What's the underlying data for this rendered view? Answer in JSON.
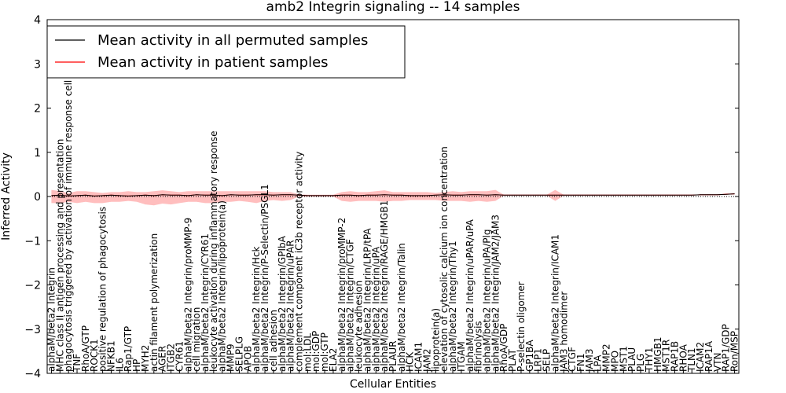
{
  "chart_data": {
    "type": "line",
    "title": "amb2 Integrin signaling -- 14 samples",
    "xlabel": "Cellular Entities",
    "ylabel": "Inferred Activity",
    "ylim": [
      -4,
      4
    ],
    "yticks": [
      -4,
      -3,
      -2,
      -1,
      0,
      1,
      2,
      3,
      4
    ],
    "grid": false,
    "legend_position": "top-left",
    "categories": [
      "alphaM/beta2 Integrin",
      "MHC class II antigen processing and presentation",
      "phagocytosis triggered by activation of immune response cell surface",
      "TNF",
      "RhoA/GTP",
      "ROCK1",
      "positive regulation of phagocytosis",
      "NFKB1",
      "IL6",
      "Rap1/GTP",
      "HP",
      "MYH2",
      "actin filament polymerization",
      "AGER",
      "ITGB2",
      "CYR61",
      "alphaM/beta2 Integrin/proMMP-9",
      "cell migration",
      "alphaM/beta2 Integrin/CYR61",
      "leukocyte activation during inflammatory response",
      "alphaM/beta2 Integrin/lipoprotein(a)",
      "MMP9",
      "SELPLG",
      "APOB",
      "alphaM/beta2 Integrin/Hck",
      "alphaM/beta2 Integrin/P-Selectin/PSGL1",
      "cell adhesion",
      "alphaM/beta2 Integrin/GPIbA",
      "alphaM/beta2 Integrin/uPAR",
      "complement component iC3b receptor activity",
      "mol:LDL",
      "mol:GDP",
      "mol:GTP",
      "ELA2",
      "alphaM/beta2 Integrin/proMMP-2",
      "alphaM/beta2 Integrin/CTGF",
      "leukocyte adhesion",
      "alphaM/beta2 Integrin/LRP/tPA",
      "alphaM/beta2 Integrin/uPA",
      "alphaM/beta2 Integrin/RAGE/HMGB1",
      "PLAUR",
      "alphaM/beta2 Integrin/Talin",
      "HCK",
      "ICAM1",
      "JAM2",
      "lipoprotein(a)",
      "elevation of cytosolic calcium ion concentration",
      "alphaM/beta2 Integrin/Thy1",
      "ITGAM",
      "alphaM/beta2 Integrin/uPAR/uPA",
      "fibrinolysis",
      "alphaM/beta2 Integrin/uPA/Plg",
      "alphaM/beta2 Integrin/JAM2/JAM3",
      "RhoA/GDP",
      "PLAT",
      "P-selectin oligomer",
      "GP1BA",
      "LRP1",
      "SELP",
      "alphaM/beta2 Integrin/ICAM1",
      "JAM3 homodimer",
      "CTGF",
      "FN1",
      "JAM3",
      "LPA",
      "MMP2",
      "MPO",
      "MST1",
      "PLAU",
      "PLG",
      "THY1",
      "HMGB1",
      "MST1R",
      "RAP1B",
      "RHOA",
      "TLN1",
      "ICAM2",
      "RAP1A",
      "VTN",
      "RAP1/GDP",
      "Ron/MSP"
    ],
    "series": [
      {
        "name": "Mean activity in all permuted samples",
        "color": "#000000",
        "values": [
          0.02,
          0.03,
          0.01,
          0.02,
          0.03,
          0.01,
          0.02,
          0.03,
          0.02,
          0.01,
          0.02,
          0.03,
          0.02,
          0.04,
          0.03,
          0.03,
          0.02,
          0.04,
          0.03,
          0.03,
          0.02,
          0.04,
          0.03,
          0.03,
          0.04,
          0.04,
          0.03,
          0.04,
          0.04,
          0.03,
          0.02,
          0.02,
          0.02,
          0.02,
          0.03,
          0.03,
          0.02,
          0.03,
          0.03,
          0.04,
          0.03,
          0.03,
          0.02,
          0.02,
          0.02,
          0.03,
          0.04,
          0.03,
          0.03,
          0.04,
          0.04,
          0.03,
          0.04,
          0.03,
          0.03,
          0.03,
          0.03,
          0.03,
          0.03,
          0.03,
          0.03,
          0.03,
          0.03,
          0.03,
          0.03,
          0.03,
          0.03,
          0.03,
          0.03,
          0.03,
          0.03,
          0.03,
          0.03,
          0.03,
          0.03,
          0.03,
          0.04,
          0.04,
          0.04,
          0.05,
          0.06
        ]
      },
      {
        "name": "Mean activity in patient samples",
        "color": "#ff0000",
        "values": [
          0.02,
          0.03,
          0.01,
          0.02,
          0.03,
          0.01,
          0.02,
          0.03,
          0.02,
          0.01,
          0.02,
          0.03,
          0.02,
          0.04,
          0.03,
          0.03,
          0.02,
          0.04,
          0.03,
          0.03,
          0.02,
          0.04,
          0.03,
          0.03,
          0.04,
          0.04,
          0.03,
          0.04,
          0.04,
          0.03,
          0.02,
          0.02,
          0.02,
          0.02,
          0.03,
          0.03,
          0.02,
          0.03,
          0.03,
          0.04,
          0.03,
          0.03,
          0.02,
          0.02,
          0.02,
          0.03,
          0.04,
          0.03,
          0.03,
          0.04,
          0.04,
          0.03,
          0.04,
          0.03,
          0.03,
          0.03,
          0.03,
          0.03,
          0.03,
          0.03,
          0.03,
          0.03,
          0.03,
          0.03,
          0.03,
          0.03,
          0.03,
          0.03,
          0.03,
          0.03,
          0.03,
          0.03,
          0.03,
          0.03,
          0.03,
          0.03,
          0.04,
          0.04,
          0.04,
          0.05,
          0.06
        ],
        "band_upper": [
          0.15,
          0.12,
          0.08,
          0.12,
          0.12,
          0.1,
          0.08,
          0.1,
          0.1,
          0.12,
          0.1,
          0.1,
          0.12,
          0.14,
          0.12,
          0.1,
          0.12,
          0.12,
          0.12,
          0.12,
          0.12,
          0.12,
          0.12,
          0.12,
          0.12,
          0.12,
          0.1,
          0.1,
          0.1,
          0.05,
          0.04,
          0.04,
          0.04,
          0.04,
          0.1,
          0.12,
          0.1,
          0.1,
          0.12,
          0.14,
          0.1,
          0.1,
          0.1,
          0.1,
          0.1,
          0.08,
          0.1,
          0.12,
          0.1,
          0.12,
          0.12,
          0.12,
          0.15,
          0.04,
          0.04,
          0.04,
          0.04,
          0.04,
          0.04,
          0.15,
          0.04,
          0.04,
          0.04,
          0.04,
          0.04,
          0.04,
          0.04,
          0.04,
          0.04,
          0.04,
          0.04,
          0.04,
          0.04,
          0.04,
          0.04,
          0.04,
          0.05,
          0.05,
          0.05,
          0.07,
          0.08
        ],
        "band_lower": [
          -0.15,
          -0.15,
          -0.12,
          -0.15,
          -0.12,
          -0.15,
          -0.15,
          -0.12,
          -0.12,
          -0.1,
          -0.12,
          -0.18,
          -0.2,
          -0.16,
          -0.18,
          -0.15,
          -0.12,
          -0.12,
          -0.15,
          -0.15,
          -0.12,
          -0.12,
          -0.1,
          -0.12,
          -0.15,
          -0.1,
          -0.08,
          -0.1,
          -0.08,
          0.0,
          0.0,
          0.0,
          0.0,
          0.0,
          -0.1,
          -0.12,
          -0.1,
          -0.1,
          -0.1,
          -0.12,
          -0.1,
          -0.1,
          -0.08,
          -0.08,
          -0.08,
          -0.08,
          -0.1,
          -0.1,
          -0.1,
          -0.12,
          -0.1,
          -0.12,
          -0.1,
          0.02,
          0.02,
          0.02,
          0.02,
          0.02,
          0.02,
          -0.1,
          0.02,
          0.02,
          0.02,
          0.02,
          0.02,
          0.02,
          0.02,
          0.02,
          0.02,
          0.02,
          0.02,
          0.02,
          0.02,
          0.02,
          0.02,
          0.02,
          0.03,
          0.03,
          0.03,
          0.04,
          0.05
        ]
      }
    ],
    "colors": {
      "band_fill": "#ffb3b3",
      "zero_line": "#000000"
    }
  }
}
